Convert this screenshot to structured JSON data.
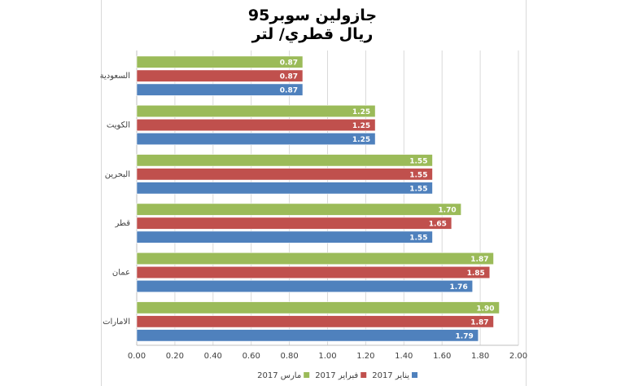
{
  "chart_data": {
    "type": "bar",
    "orientation": "horizontal",
    "title": "جازولين سوبر95",
    "subtitle": "ريال قطري/ لتر",
    "categories": [
      "السعودية",
      "الكويت",
      "البحرين",
      "قطر",
      "عمان",
      "الامارات"
    ],
    "series": [
      {
        "name": "مارس 2017",
        "color": "#9bbb59",
        "values": [
          0.87,
          1.25,
          1.55,
          1.7,
          1.87,
          1.9
        ]
      },
      {
        "name": "فبراير 2017",
        "color": "#c0504d",
        "values": [
          0.87,
          1.25,
          1.55,
          1.65,
          1.85,
          1.87
        ]
      },
      {
        "name": "يناير 2017",
        "color": "#4f81bd",
        "values": [
          0.87,
          1.25,
          1.55,
          1.55,
          1.76,
          1.79
        ]
      }
    ],
    "xlim": [
      0,
      2.0
    ],
    "x_ticks": [
      "0.00",
      "0.20",
      "0.40",
      "0.60",
      "0.80",
      "1.00",
      "1.20",
      "1.40",
      "1.60",
      "1.80",
      "2.00"
    ],
    "grid": true,
    "legend_position": "bottom"
  }
}
